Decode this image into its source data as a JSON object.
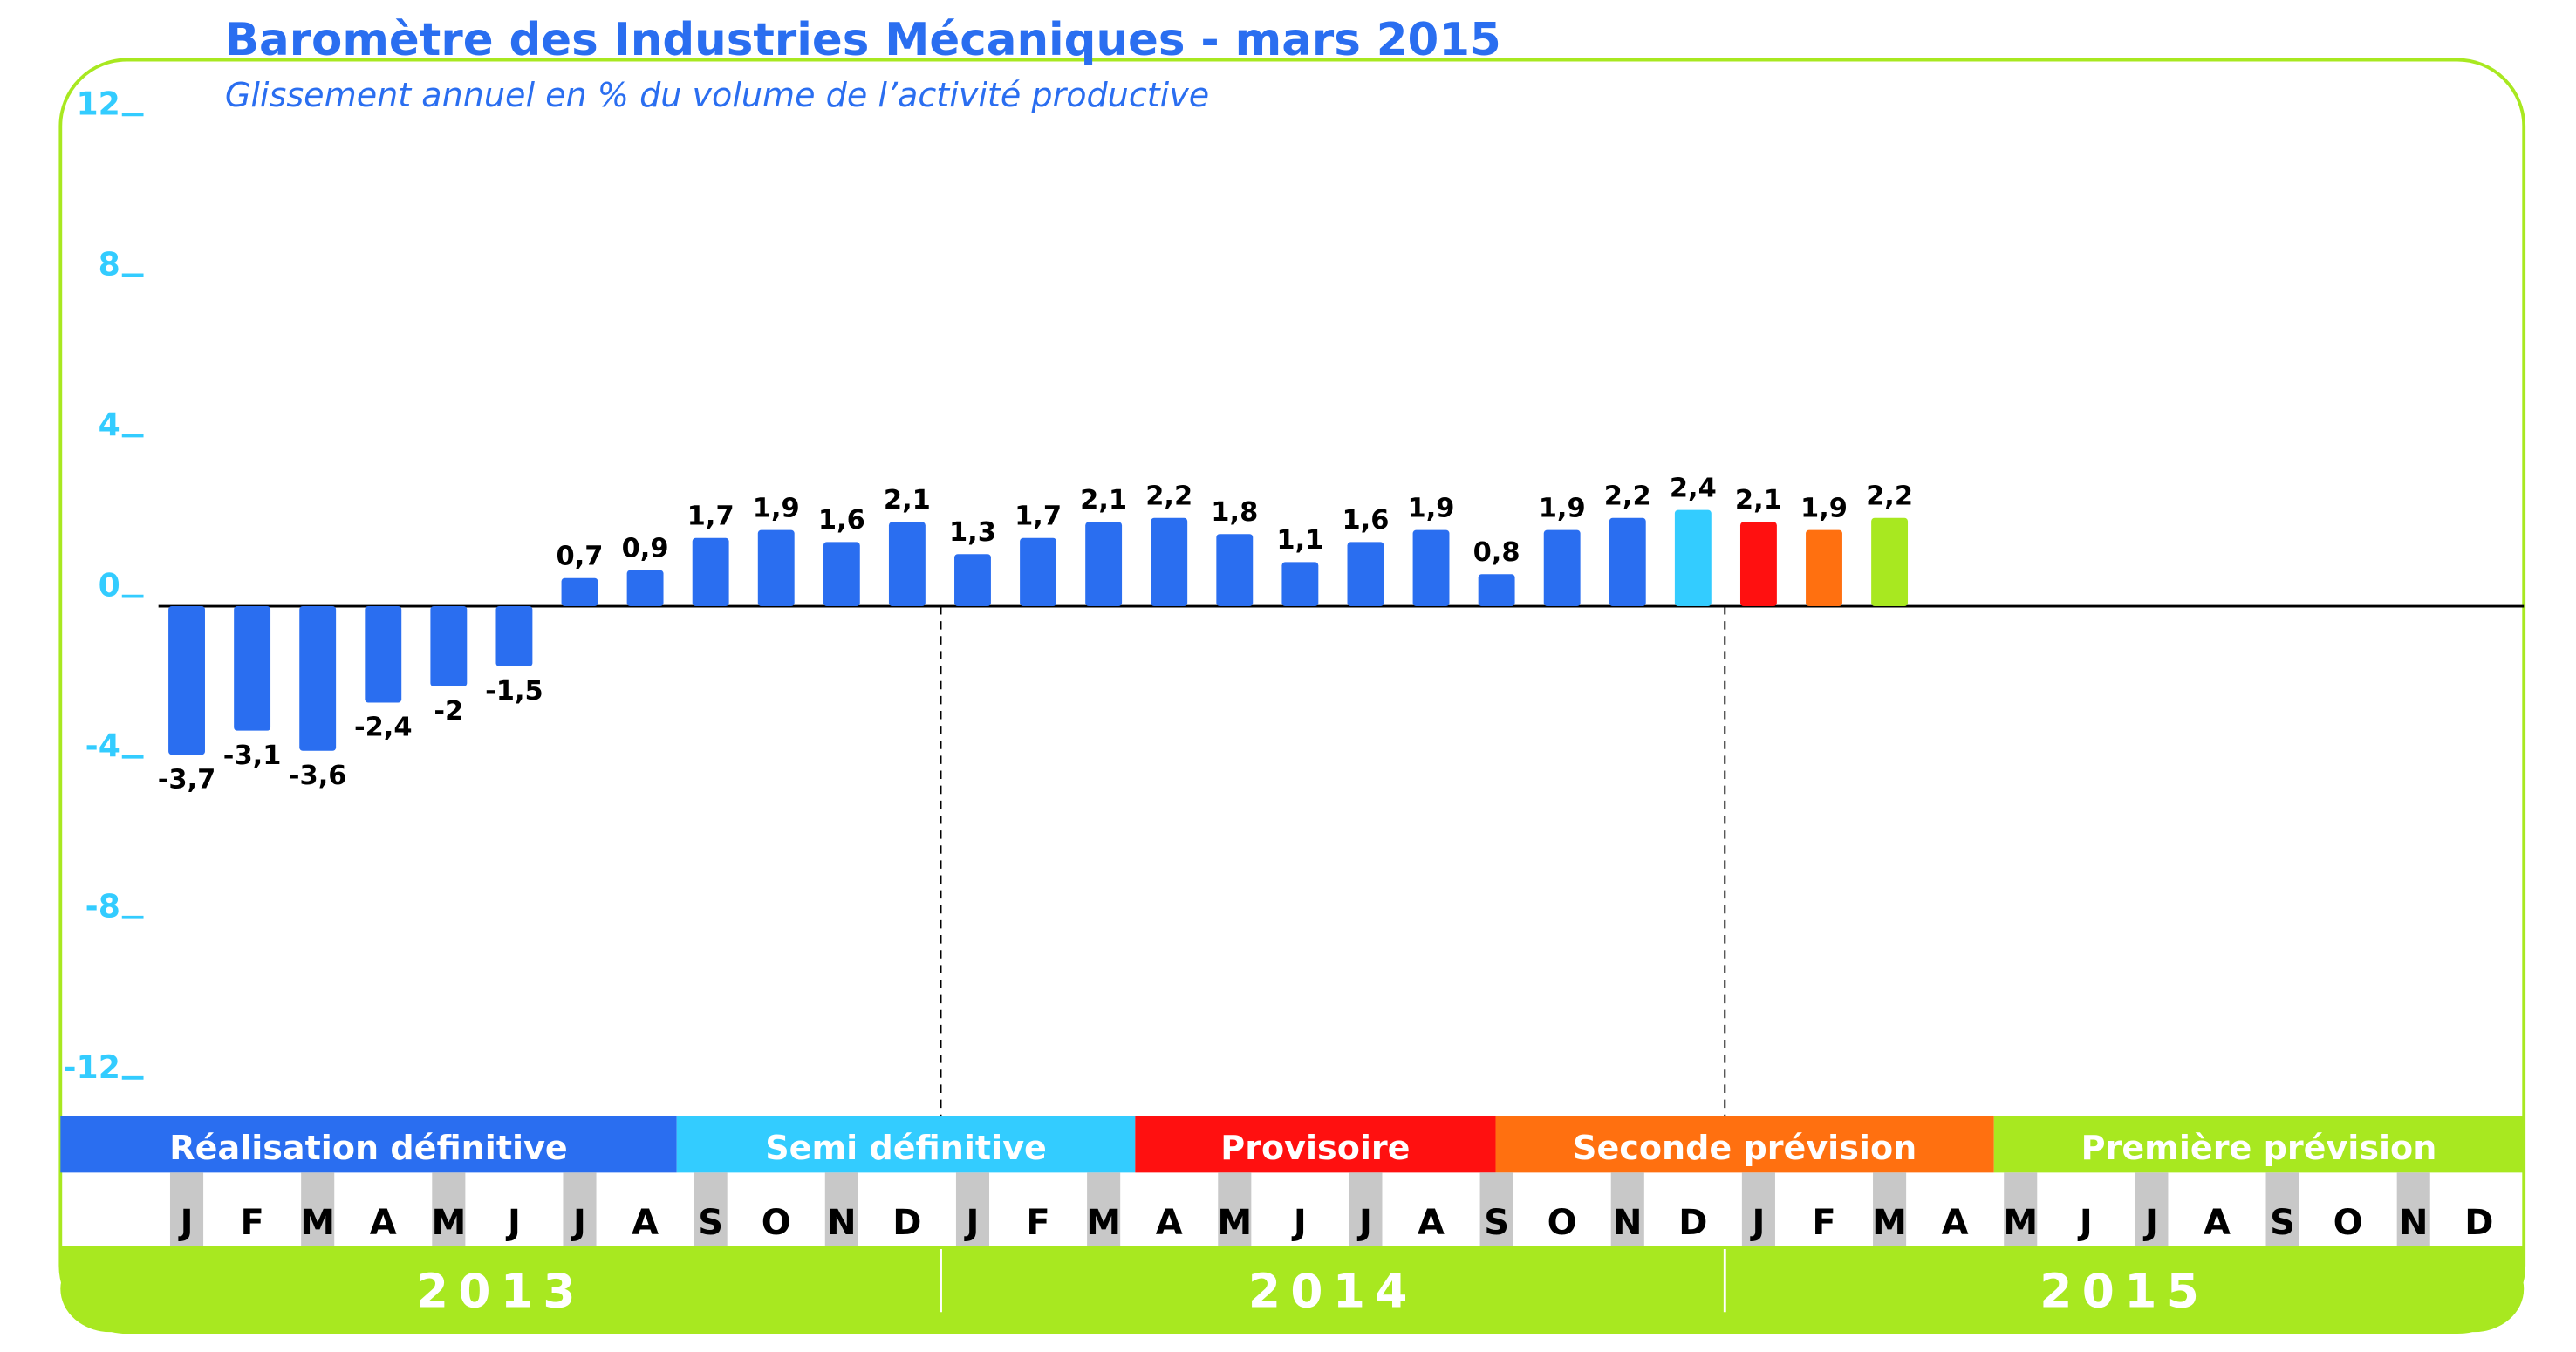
{
  "chart_data": {
    "type": "bar",
    "title": "Baromètre des Industries Mécaniques - mars 2015",
    "subtitle": "Glissement annuel en % du volume de l’activité productive",
    "categories": [
      "J",
      "F",
      "M",
      "A",
      "M",
      "J",
      "J",
      "A",
      "S",
      "O",
      "N",
      "D",
      "J",
      "F",
      "M",
      "A",
      "M",
      "J",
      "J",
      "A",
      "S",
      "O",
      "N",
      "D",
      "J",
      "F",
      "M",
      "A",
      "M",
      "J",
      "J",
      "A",
      "S",
      "O",
      "N",
      "D"
    ],
    "values": [
      -3.7,
      -3.1,
      -3.6,
      -2.4,
      -2,
      -1.5,
      0.7,
      0.9,
      1.7,
      1.9,
      1.6,
      2.1,
      1.3,
      1.7,
      2.1,
      2.2,
      1.8,
      1.1,
      1.6,
      1.9,
      0.8,
      1.9,
      2.2,
      2.4,
      2.1,
      1.9,
      2.2,
      null,
      null,
      null,
      null,
      null,
      null,
      null,
      null,
      null
    ],
    "value_labels": [
      "-3,7",
      "-3,1",
      "-3,6",
      "-2,4",
      "-2",
      "-1,5",
      "0,7",
      "0,9",
      "1,7",
      "1,9",
      "1,6",
      "2,1",
      "1,3",
      "1,7",
      "2,1",
      "2,2",
      "1,8",
      "1,1",
      "1,6",
      "1,9",
      "0,8",
      "1,9",
      "2,2",
      "2,4",
      "2,1",
      "1,9",
      "2,2",
      null,
      null,
      null,
      null,
      null,
      null,
      null,
      null,
      null
    ],
    "colors": [
      "#2a6ef0",
      "#2a6ef0",
      "#2a6ef0",
      "#2a6ef0",
      "#2a6ef0",
      "#2a6ef0",
      "#2a6ef0",
      "#2a6ef0",
      "#2a6ef0",
      "#2a6ef0",
      "#2a6ef0",
      "#2a6ef0",
      "#2a6ef0",
      "#2a6ef0",
      "#2a6ef0",
      "#2a6ef0",
      "#2a6ef0",
      "#2a6ef0",
      "#2a6ef0",
      "#2a6ef0",
      "#2a6ef0",
      "#2a6ef0",
      "#2a6ef0",
      "#33ccff",
      "#ff1010",
      "#ff7010",
      "#a8e820",
      null,
      null,
      null,
      null,
      null,
      null,
      null,
      null,
      null
    ],
    "ylim": [
      -12,
      12
    ],
    "yticks": [
      12,
      8,
      4,
      0,
      -4,
      -8,
      -12
    ],
    "phases": [
      {
        "name": "Réalisation définitive",
        "color": "#2a6ef0"
      },
      {
        "name": "Semi définitive",
        "color": "#33ccff"
      },
      {
        "name": "Provisoire",
        "color": "#ff1010"
      },
      {
        "name": "Seconde prévision",
        "color": "#ff7010"
      },
      {
        "name": "Première prévision",
        "color": "#a8e820"
      }
    ],
    "years": [
      "2013",
      "2014",
      "2015"
    ]
  }
}
